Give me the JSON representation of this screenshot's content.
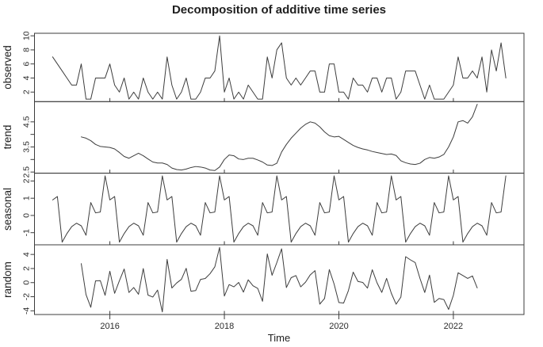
{
  "chart_data": {
    "type": "line",
    "title": "Decomposition of additive time series",
    "xlabel": "Time",
    "x_start_year": 2015,
    "frequency": 12,
    "n_points": 96,
    "x_ticks": [
      2016,
      2018,
      2020,
      2022
    ],
    "legend": "none",
    "grid": "off",
    "panels": [
      {
        "label": "observed",
        "yticks": [
          2,
          4,
          6,
          8,
          10
        ],
        "yticks_minor": []
      },
      {
        "label": "trend",
        "yticks": [
          2.5,
          3.5,
          4.5
        ],
        "yticks_minor": [
          3.0,
          4.0
        ]
      },
      {
        "label": "seasonal",
        "yticks": [
          -1,
          0,
          1,
          2
        ],
        "yticks_minor": []
      },
      {
        "label": "random",
        "yticks": [
          -4,
          -2,
          0,
          2,
          4
        ],
        "yticks_minor": []
      }
    ],
    "series": [
      {
        "name": "observed",
        "panel": 0,
        "start_month_offset": 0,
        "values": [
          7,
          6,
          5,
          4,
          3,
          3,
          6,
          1,
          1,
          4,
          4,
          4,
          6,
          3,
          2,
          4,
          1,
          2,
          1,
          4,
          2,
          1,
          2,
          1,
          7,
          3,
          1,
          2,
          4,
          1,
          1,
          2,
          4,
          4,
          5,
          10,
          2,
          4,
          1,
          2,
          1,
          3,
          2,
          1,
          1,
          7,
          4,
          8,
          9,
          4,
          3,
          4,
          3,
          4,
          5,
          5,
          2,
          2,
          6,
          6,
          2,
          2,
          1,
          4,
          3,
          3,
          2,
          4,
          4,
          2,
          4,
          4,
          1,
          2,
          5,
          5,
          5,
          3,
          1,
          3,
          1,
          1,
          1,
          2,
          3,
          7,
          4,
          4,
          5,
          4,
          7,
          2,
          8,
          5,
          9,
          4
        ]
      },
      {
        "name": "trend",
        "panel": 1,
        "start_month_offset": 6,
        "values": [
          3.9,
          3.85,
          3.75,
          3.6,
          3.52,
          3.5,
          3.48,
          3.42,
          3.28,
          3.12,
          3.05,
          3.15,
          3.25,
          3.15,
          3.02,
          2.9,
          2.86,
          2.86,
          2.8,
          2.66,
          2.6,
          2.58,
          2.62,
          2.68,
          2.72,
          2.7,
          2.66,
          2.58,
          2.56,
          2.7,
          3.0,
          3.18,
          3.15,
          3.02,
          3.0,
          3.05,
          3.05,
          2.98,
          2.9,
          2.78,
          2.76,
          2.85,
          3.3,
          3.6,
          3.85,
          4.05,
          4.25,
          4.4,
          4.5,
          4.45,
          4.3,
          4.1,
          3.95,
          3.9,
          3.92,
          3.8,
          3.68,
          3.56,
          3.48,
          3.42,
          3.38,
          3.32,
          3.28,
          3.24,
          3.2,
          3.22,
          3.16,
          2.95,
          2.87,
          2.82,
          2.8,
          2.85,
          3.0,
          3.08,
          3.05,
          3.1,
          3.2,
          3.5,
          3.9,
          4.5,
          4.55,
          4.45,
          4.7,
          5.2
        ]
      },
      {
        "name": "seasonal",
        "panel": 2,
        "start_month_offset": 0,
        "repeat_cycle": true,
        "cycle_jan_to_dec": [
          0.9,
          1.1,
          -1.55,
          -1.05,
          -0.65,
          -0.45,
          -0.6,
          -1.15,
          0.75,
          0.15,
          0.2,
          2.3
        ],
        "values": []
      },
      {
        "name": "random",
        "panel": 3,
        "start_month_offset": 6,
        "values": [
          2.7,
          -1.7,
          -3.5,
          0.25,
          0.28,
          -1.8,
          1.62,
          -1.52,
          0.27,
          1.93,
          -1.4,
          -0.7,
          -1.65,
          2.0,
          -1.77,
          -2.05,
          -1.06,
          -4.16,
          3.3,
          -0.76,
          -0.05,
          0.47,
          2.03,
          -1.23,
          -1.12,
          0.45,
          0.59,
          1.27,
          2.24,
          5.0,
          -1.9,
          -0.28,
          -0.6,
          0.03,
          -1.35,
          0.4,
          -0.45,
          -0.83,
          -2.65,
          4.07,
          1.04,
          2.85,
          4.8,
          -0.7,
          0.7,
          1.0,
          -0.6,
          0.05,
          1.1,
          1.7,
          -3.05,
          -2.25,
          1.85,
          -0.2,
          -2.82,
          -2.9,
          -1.13,
          1.49,
          0.17,
          0.03,
          -0.78,
          1.83,
          -0.03,
          -1.39,
          0.6,
          -1.52,
          -3.06,
          -2.05,
          3.68,
          3.23,
          2.85,
          0.6,
          -1.4,
          1.07,
          -2.8,
          -2.25,
          -2.4,
          -3.8,
          -1.8,
          1.4,
          1.0,
          0.6,
          0.95,
          -0.75
        ]
      }
    ]
  }
}
